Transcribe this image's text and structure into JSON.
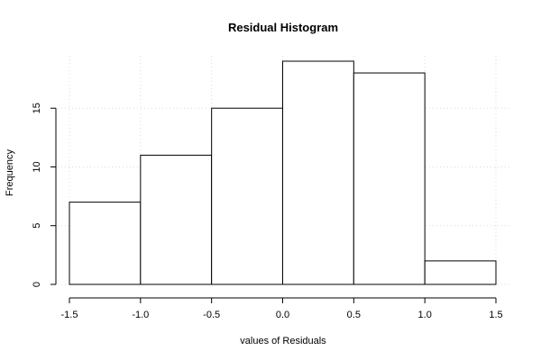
{
  "chart_data": {
    "type": "bar",
    "title": "Residual Histogram",
    "xlabel": "values of Residuals",
    "ylabel": "Frequency",
    "bins": [
      {
        "x0": -1.5,
        "x1": -1.0,
        "count": 7
      },
      {
        "x0": -1.0,
        "x1": -0.5,
        "count": 11
      },
      {
        "x0": -0.5,
        "x1": 0.0,
        "count": 15
      },
      {
        "x0": 0.0,
        "x1": 0.5,
        "count": 19
      },
      {
        "x0": 0.5,
        "x1": 1.0,
        "count": 18
      },
      {
        "x0": 1.0,
        "x1": 1.5,
        "count": 2
      }
    ],
    "xlim": [
      -1.5,
      1.5
    ],
    "ylim": [
      0,
      19
    ],
    "x_ticks": [
      -1.5,
      -1.0,
      -0.5,
      0.0,
      0.5,
      1.0,
      1.5
    ],
    "x_tick_labels": [
      "-1.5",
      "-1.0",
      "-0.5",
      "0.0",
      "0.5",
      "1.0",
      "1.5"
    ],
    "y_ticks": [
      0,
      5,
      10,
      15
    ],
    "y_tick_labels": [
      "0",
      "5",
      "10",
      "15"
    ],
    "grid": true,
    "colors": {
      "bar_fill": "#ffffff",
      "bar_stroke": "#000000",
      "grid": "#d9d9d9"
    }
  }
}
